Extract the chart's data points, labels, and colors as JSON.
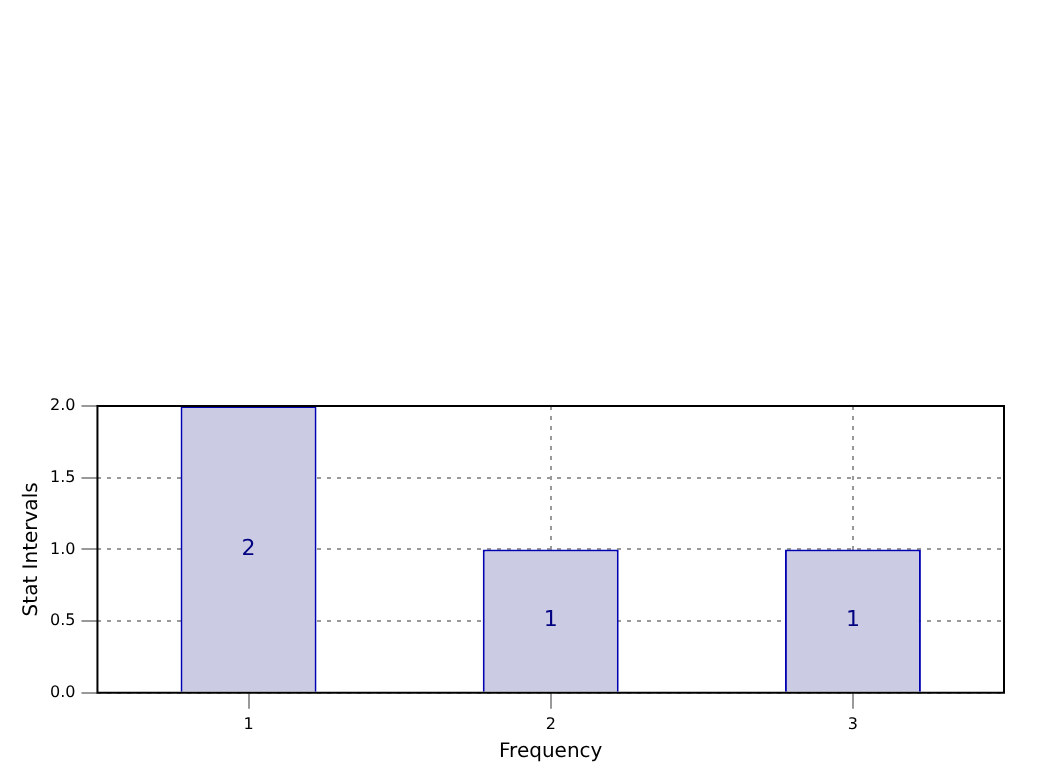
{
  "chart_data": {
    "type": "bar",
    "xlabel": "Frequency",
    "ylabel": "Stat Intervals",
    "categories": [
      "1",
      "2",
      "3"
    ],
    "values": [
      2,
      1,
      1
    ],
    "color": "#cbcbe4",
    "ylim": [
      0,
      2
    ],
    "yticks": [
      {
        "value": 0,
        "label": "0.0"
      },
      0.5,
      {
        "value": 1,
        "label": "1.0"
      },
      1.5,
      {
        "value": 2,
        "label": "2.0"
      }
    ],
    "grid": true,
    "data_labels": true
  }
}
